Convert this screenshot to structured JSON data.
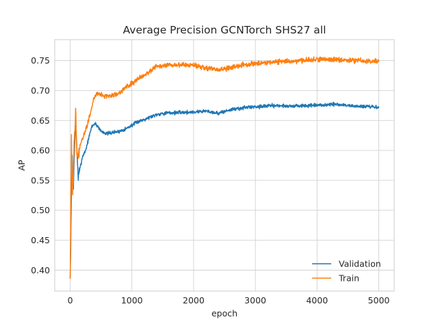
{
  "chart_data": {
    "type": "line",
    "title": "Average Precision GCNTorch SHS27 all",
    "xlabel": "epoch",
    "ylabel": "AP",
    "xlim": [
      -250,
      5250
    ],
    "ylim": [
      0.365,
      0.785
    ],
    "xticks": [
      0,
      1000,
      2000,
      3000,
      4000,
      5000
    ],
    "xtick_labels": [
      "0",
      "1000",
      "2000",
      "3000",
      "4000",
      "5000"
    ],
    "yticks": [
      0.4,
      0.45,
      0.5,
      0.55,
      0.6,
      0.65,
      0.7,
      0.75
    ],
    "ytick_labels": [
      "0.40",
      "0.45",
      "0.50",
      "0.55",
      "0.60",
      "0.65",
      "0.70",
      "0.75"
    ],
    "grid": true,
    "legend_position": "lower-right",
    "series": [
      {
        "name": "Validation",
        "color": "#1f77b4",
        "noise": 0.003,
        "points": [
          [
            0,
            0.385
          ],
          [
            10,
            0.45
          ],
          [
            30,
            0.6
          ],
          [
            50,
            0.53
          ],
          [
            80,
            0.64
          ],
          [
            100,
            0.62
          ],
          [
            130,
            0.555
          ],
          [
            160,
            0.57
          ],
          [
            200,
            0.59
          ],
          [
            250,
            0.6
          ],
          [
            300,
            0.62
          ],
          [
            350,
            0.64
          ],
          [
            400,
            0.645
          ],
          [
            450,
            0.64
          ],
          [
            500,
            0.632
          ],
          [
            600,
            0.628
          ],
          [
            700,
            0.63
          ],
          [
            800,
            0.632
          ],
          [
            900,
            0.636
          ],
          [
            1000,
            0.642
          ],
          [
            1100,
            0.648
          ],
          [
            1200,
            0.652
          ],
          [
            1300,
            0.656
          ],
          [
            1400,
            0.66
          ],
          [
            1500,
            0.662
          ],
          [
            1700,
            0.663
          ],
          [
            2000,
            0.664
          ],
          [
            2200,
            0.666
          ],
          [
            2400,
            0.662
          ],
          [
            2600,
            0.668
          ],
          [
            2800,
            0.671
          ],
          [
            3000,
            0.673
          ],
          [
            3300,
            0.675
          ],
          [
            3600,
            0.674
          ],
          [
            4000,
            0.675
          ],
          [
            4300,
            0.677
          ],
          [
            4600,
            0.674
          ],
          [
            5000,
            0.672
          ]
        ]
      },
      {
        "name": "Train",
        "color": "#ff7f0e",
        "noise": 0.004,
        "points": [
          [
            0,
            0.39
          ],
          [
            10,
            0.48
          ],
          [
            20,
            0.62
          ],
          [
            40,
            0.52
          ],
          [
            70,
            0.63
          ],
          [
            90,
            0.667
          ],
          [
            110,
            0.6
          ],
          [
            130,
            0.59
          ],
          [
            170,
            0.61
          ],
          [
            220,
            0.625
          ],
          [
            270,
            0.64
          ],
          [
            320,
            0.66
          ],
          [
            380,
            0.685
          ],
          [
            430,
            0.695
          ],
          [
            500,
            0.693
          ],
          [
            600,
            0.69
          ],
          [
            700,
            0.692
          ],
          [
            800,
            0.697
          ],
          [
            900,
            0.705
          ],
          [
            1000,
            0.712
          ],
          [
            1100,
            0.72
          ],
          [
            1200,
            0.726
          ],
          [
            1300,
            0.733
          ],
          [
            1400,
            0.74
          ],
          [
            1600,
            0.742
          ],
          [
            1800,
            0.743
          ],
          [
            2000,
            0.742
          ],
          [
            2200,
            0.738
          ],
          [
            2400,
            0.734
          ],
          [
            2600,
            0.738
          ],
          [
            2800,
            0.743
          ],
          [
            3000,
            0.745
          ],
          [
            3300,
            0.748
          ],
          [
            3600,
            0.749
          ],
          [
            4000,
            0.752
          ],
          [
            4300,
            0.752
          ],
          [
            4600,
            0.75
          ],
          [
            5000,
            0.749
          ]
        ]
      }
    ]
  }
}
